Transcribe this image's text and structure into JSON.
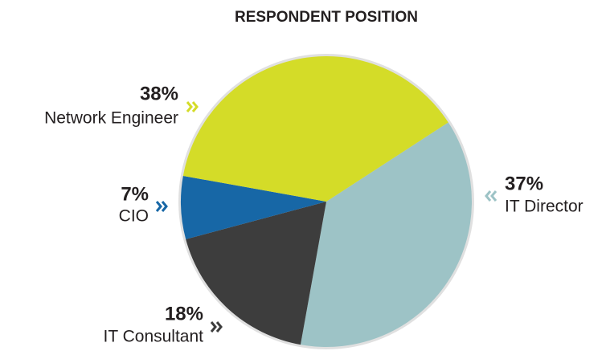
{
  "chart_data": {
    "type": "pie",
    "title": "RESPONDENT POSITION",
    "categories": [
      "IT Director",
      "IT Consultant",
      "CIO",
      "Network Engineer"
    ],
    "values": [
      37,
      18,
      7,
      38
    ],
    "value_labels": [
      "37%",
      "18%",
      "7%",
      "38%"
    ],
    "colors": [
      "#9dc3c6",
      "#3d3d3d",
      "#1767a6",
      "#d4dc28"
    ]
  }
}
